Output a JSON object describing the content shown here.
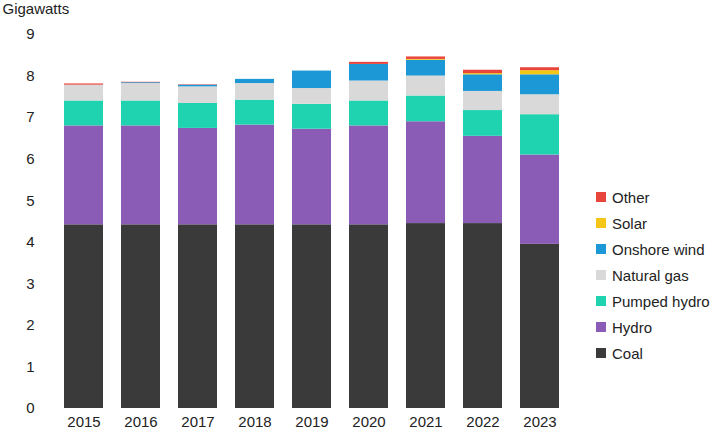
{
  "chart_data": {
    "type": "bar",
    "stacked": true,
    "grid": false,
    "legend": "right",
    "y_label": "Gigawatts",
    "categories": [
      "2015",
      "2016",
      "2017",
      "2018",
      "2019",
      "2020",
      "2021",
      "2022",
      "2023"
    ],
    "ylim": [
      0,
      9
    ],
    "yticks": [
      0,
      1,
      2,
      3,
      4,
      5,
      6,
      7,
      8,
      9
    ],
    "series": [
      {
        "name": "Coal",
        "color": "#3a3a3a",
        "values": [
          4.42,
          4.42,
          4.42,
          4.42,
          4.42,
          4.42,
          4.45,
          4.45,
          3.95
        ]
      },
      {
        "name": "Hydro",
        "color": "#8b5cb6",
        "values": [
          2.38,
          2.38,
          2.32,
          2.4,
          2.3,
          2.38,
          2.45,
          2.1,
          2.15
        ]
      },
      {
        "name": "Pumped hydro",
        "color": "#20d3b0",
        "values": [
          0.6,
          0.6,
          0.6,
          0.6,
          0.6,
          0.6,
          0.62,
          0.62,
          0.97
        ]
      },
      {
        "name": "Natural gas",
        "color": "#d9d9d9",
        "values": [
          0.38,
          0.42,
          0.4,
          0.4,
          0.38,
          0.48,
          0.48,
          0.46,
          0.48
        ]
      },
      {
        "name": "Onshore wind",
        "color": "#1b98d5",
        "values": [
          0,
          0.02,
          0.04,
          0.1,
          0.42,
          0.4,
          0.38,
          0.4,
          0.48
        ]
      },
      {
        "name": "Solar",
        "color": "#f5c518",
        "values": [
          0,
          0,
          0,
          0,
          0,
          0,
          0.02,
          0.03,
          0.1
        ]
      },
      {
        "name": "Other",
        "color": "#e8453c",
        "values": [
          0.03,
          0.01,
          0.01,
          0,
          0,
          0.05,
          0.06,
          0.08,
          0.07
        ]
      }
    ]
  }
}
